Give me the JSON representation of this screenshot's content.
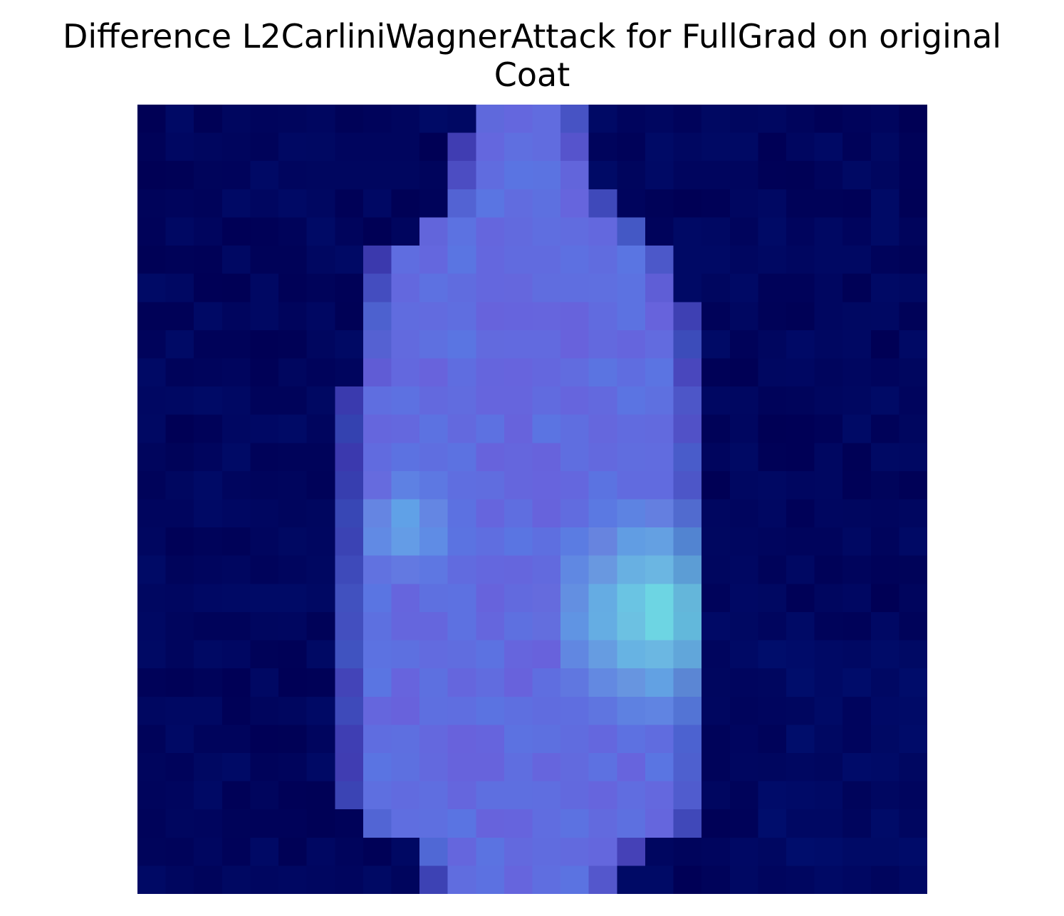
{
  "title": {
    "line1": "Difference L2CarliniWagnerAttack for FullGrad on original",
    "line2": "Coat"
  },
  "image": {
    "kind": "heatmap-overlay",
    "grid": {
      "rows": 28,
      "cols": 28
    },
    "description_colors": {
      "background_dark": "#00006e",
      "mid_purple": "#6a64e0",
      "highlight_cyan": "#6ee8e8"
    }
  }
}
